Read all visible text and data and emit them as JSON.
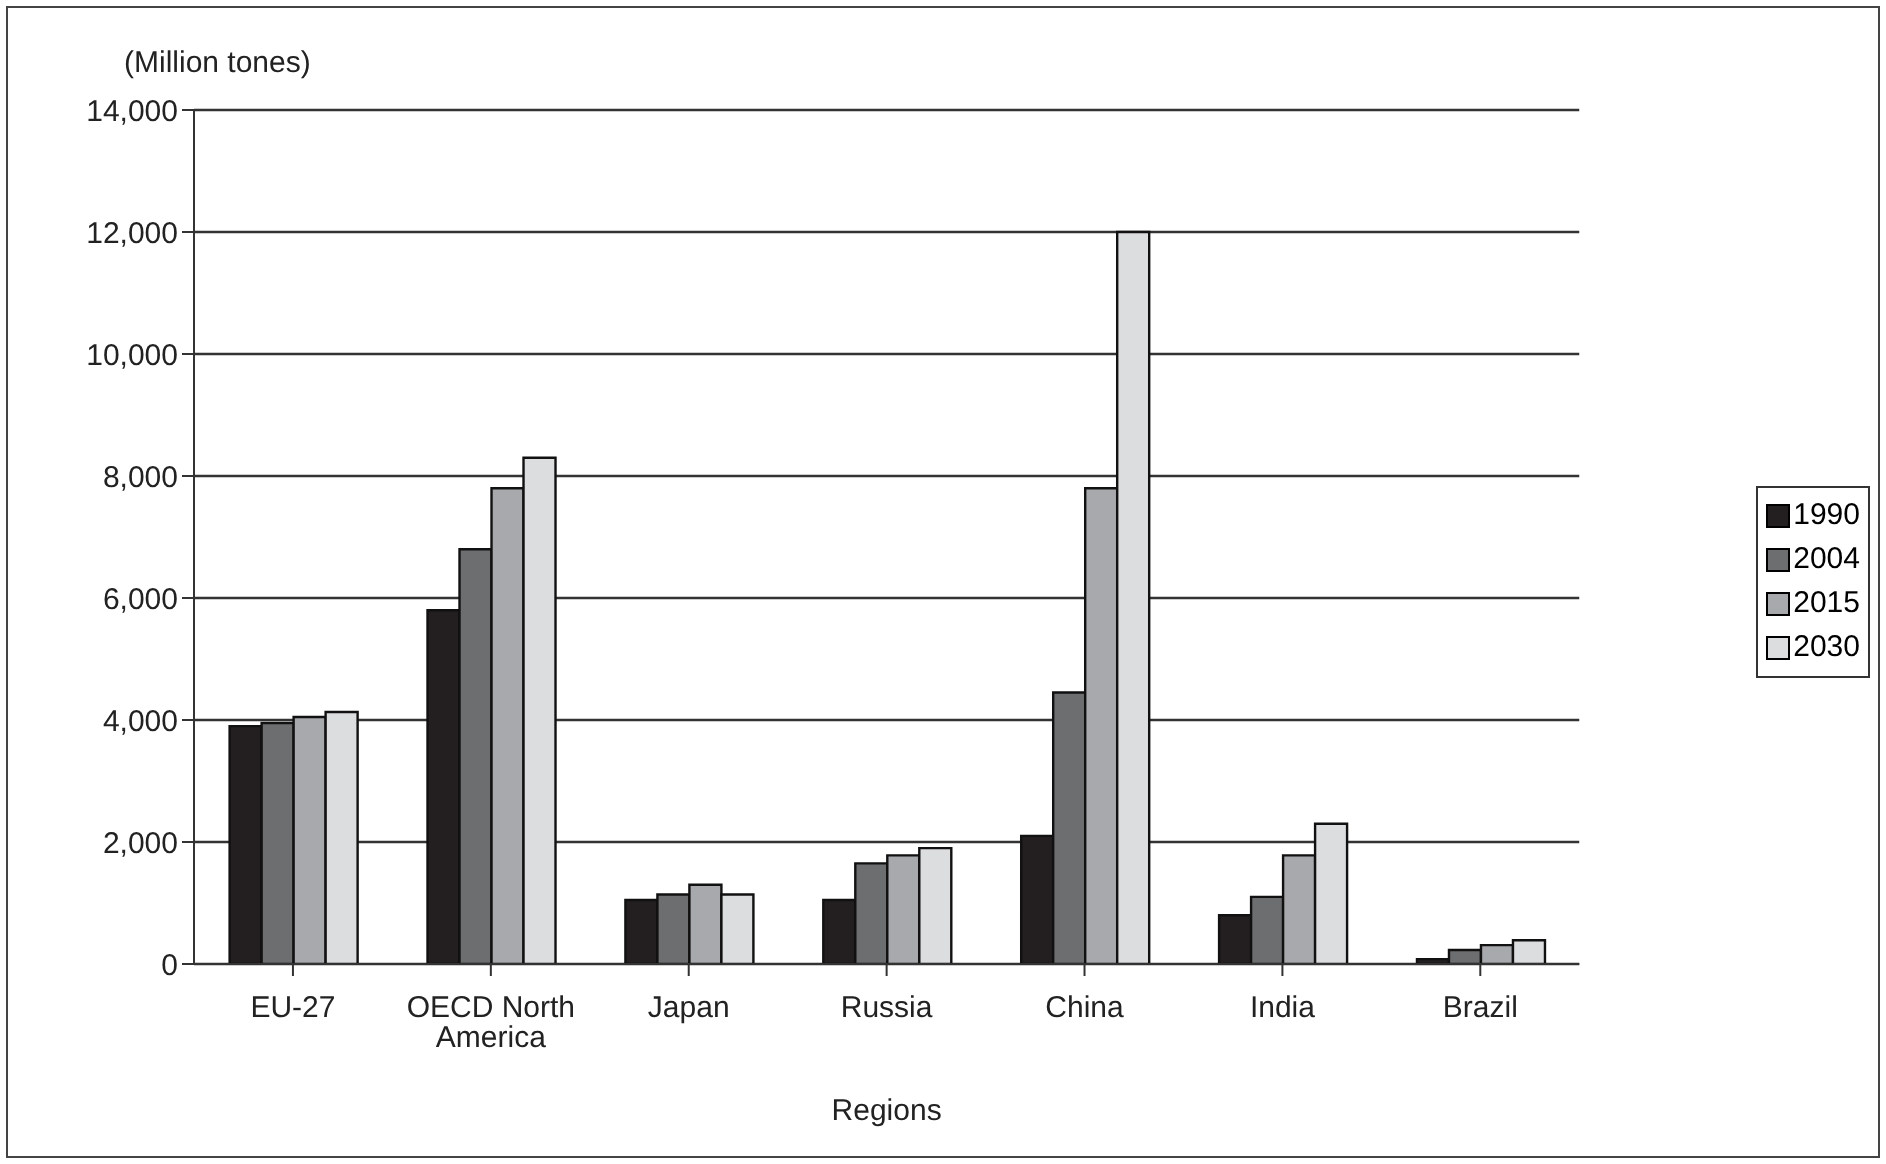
{
  "chart_data": {
    "type": "bar",
    "ylabel": "(Million tones)",
    "xlabel": "Regions",
    "categories": [
      "EU-27",
      "OECD North America",
      "Japan",
      "Russia",
      "China",
      "India",
      "Brazil"
    ],
    "series": [
      {
        "name": "1990",
        "color": "#231f20",
        "values": [
          3900,
          5800,
          1050,
          1050,
          2100,
          800,
          80
        ]
      },
      {
        "name": "2004",
        "color": "#6d6e70",
        "values": [
          3950,
          6800,
          1140,
          1650,
          4450,
          1100,
          230
        ]
      },
      {
        "name": "2015",
        "color": "#a7a9ac",
        "values": [
          4050,
          7800,
          1300,
          1780,
          7800,
          1780,
          310
        ]
      },
      {
        "name": "2030",
        "color": "#dcdddf",
        "values": [
          4130,
          8300,
          1140,
          1900,
          12000,
          2300,
          390
        ]
      }
    ],
    "ylim": [
      0,
      14000
    ],
    "yticks": [
      0,
      {
        "value": 2000,
        "label": "2,000"
      },
      {
        "value": 4000,
        "label": "4,000"
      },
      {
        "value": 6000,
        "label": "6,000"
      },
      {
        "value": 8000,
        "label": "8,000"
      },
      {
        "value": 10000,
        "label": "10,000"
      },
      {
        "value": 12000,
        "label": "12,000"
      },
      {
        "value": 14000,
        "label": "14,000"
      }
    ],
    "grid": "y",
    "legend": "right"
  }
}
